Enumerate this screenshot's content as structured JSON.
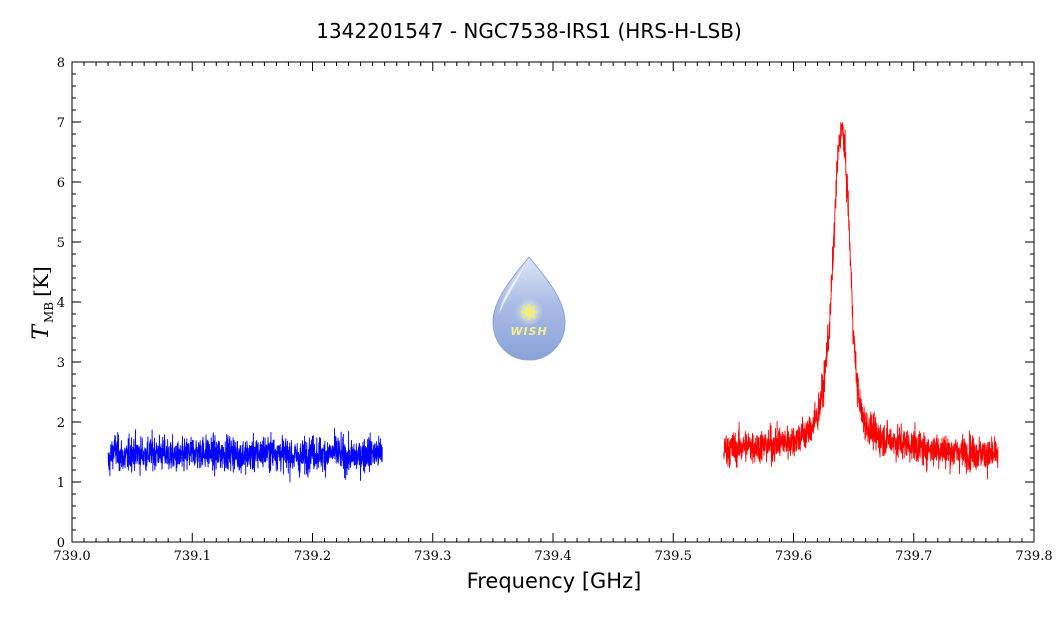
{
  "chart_data": {
    "type": "line",
    "title": "1342201547 - NGC7538-IRS1 (HRS-H-LSB)",
    "xlabel": "Frequency [GHz]",
    "ylabel": {
      "symbol": "T",
      "subscript": "MB",
      "unit": "[K]"
    },
    "xlim": [
      739.0,
      739.8
    ],
    "ylim": [
      0,
      8
    ],
    "x_ticks": [
      739.0,
      739.1,
      739.2,
      739.3,
      739.4,
      739.5,
      739.6,
      739.7,
      739.8
    ],
    "x_tick_labels": [
      "739.0",
      "739.1",
      "739.2",
      "739.3",
      "739.4",
      "739.5",
      "739.6",
      "739.7",
      "739.8"
    ],
    "y_ticks": [
      0,
      1,
      2,
      3,
      4,
      5,
      6,
      7,
      8
    ],
    "y_tick_labels": [
      "0",
      "1",
      "2",
      "3",
      "4",
      "5",
      "6",
      "7",
      "8"
    ],
    "grid": false,
    "series": [
      {
        "color": "#0000ff",
        "x": [
          739.03,
          739.035,
          739.04,
          739.045,
          739.05,
          739.06,
          739.07,
          739.08,
          739.09,
          739.1,
          739.11,
          739.12,
          739.13,
          739.14,
          739.15,
          739.16,
          739.17,
          739.18,
          739.19,
          739.2,
          739.21,
          739.22,
          739.23,
          739.24,
          739.25,
          739.258
        ],
        "y": [
          1.3,
          1.55,
          1.45,
          1.4,
          1.5,
          1.45,
          1.5,
          1.45,
          1.4,
          1.5,
          1.5,
          1.45,
          1.5,
          1.45,
          1.45,
          1.5,
          1.5,
          1.45,
          1.4,
          1.5,
          1.45,
          1.5,
          1.4,
          1.45,
          1.5,
          1.45
        ],
        "noise_range": [
          0.7,
          2.25
        ]
      },
      {
        "color": "#ff0000",
        "x": [
          739.542,
          739.55,
          739.56,
          739.57,
          739.58,
          739.59,
          739.6,
          739.605,
          739.61,
          739.615,
          739.62,
          739.625,
          739.63,
          739.633,
          739.636,
          739.638,
          739.64,
          739.642,
          739.645,
          739.648,
          739.65,
          739.653,
          739.656,
          739.66,
          739.665,
          739.67,
          739.68,
          739.69,
          739.7,
          739.71,
          739.72,
          739.73,
          739.74,
          739.75,
          739.76,
          739.77
        ],
        "y": [
          1.55,
          1.55,
          1.6,
          1.6,
          1.62,
          1.65,
          1.7,
          1.75,
          1.8,
          1.9,
          2.1,
          2.6,
          3.6,
          4.8,
          6.1,
          6.7,
          6.9,
          6.7,
          5.8,
          4.4,
          3.4,
          2.6,
          2.2,
          1.95,
          1.85,
          1.75,
          1.7,
          1.65,
          1.6,
          1.55,
          1.55,
          1.5,
          1.5,
          1.5,
          1.45,
          1.45
        ],
        "noise_range": [
          0.85,
          7.15
        ]
      }
    ]
  },
  "watermark": {
    "text": "WISH",
    "icon": "wish-drop-logo-icon"
  }
}
